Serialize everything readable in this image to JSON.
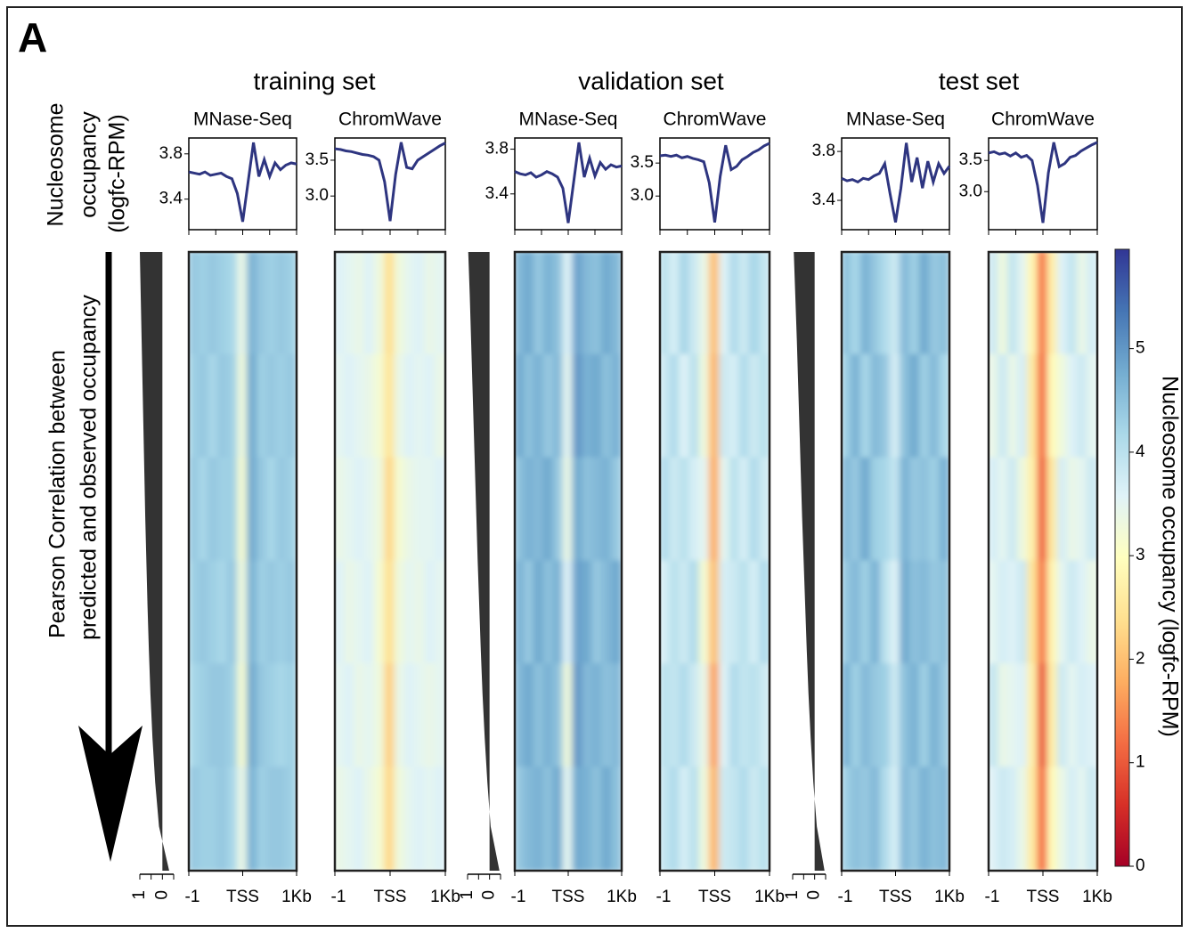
{
  "panel_label": "A",
  "group_titles": [
    "training set",
    "validation set",
    "test set"
  ],
  "profile_axis_label": [
    "Nucleosome",
    "occupancy",
    "(logfc-RPM)"
  ],
  "sort_label": [
    "Pearson Correlation between",
    "predicted and observed occupancy"
  ],
  "chart_data": [
    {
      "type": "line",
      "title": "MNase-Seq",
      "x": [
        -1000,
        -900,
        -800,
        -700,
        -600,
        -500,
        -400,
        -300,
        -200,
        -100,
        0,
        100,
        200,
        300,
        400,
        500,
        600,
        700,
        800,
        900,
        1000
      ],
      "xlim": [
        -1000,
        1000
      ],
      "xminor": [
        -1000,
        -500,
        0,
        500,
        1000
      ],
      "ylim": [
        3.13,
        3.94
      ],
      "yticks": [
        3.4,
        3.8
      ],
      "color": "#2e3580",
      "values": [
        3.64,
        3.63,
        3.62,
        3.64,
        3.61,
        3.62,
        3.63,
        3.6,
        3.58,
        3.45,
        3.2,
        3.55,
        3.9,
        3.6,
        3.75,
        3.6,
        3.72,
        3.66,
        3.7,
        3.72,
        3.71
      ]
    },
    {
      "type": "line",
      "title": "ChromWave",
      "x": [
        -1000,
        -900,
        -800,
        -700,
        -600,
        -500,
        -400,
        -300,
        -200,
        -100,
        0,
        100,
        200,
        300,
        400,
        500,
        600,
        700,
        800,
        900,
        1000
      ],
      "xlim": [
        -1000,
        1000
      ],
      "xminor": [
        -1000,
        -500,
        0,
        500,
        1000
      ],
      "ylim": [
        2.53,
        3.81
      ],
      "yticks": [
        {
          "value": 3,
          "label": "3.0"
        },
        3.5
      ],
      "color": "#2e3580",
      "values": [
        3.66,
        3.65,
        3.63,
        3.62,
        3.6,
        3.58,
        3.57,
        3.55,
        3.5,
        3.2,
        2.65,
        3.3,
        3.75,
        3.4,
        3.38,
        3.5,
        3.55,
        3.6,
        3.65,
        3.7,
        3.74
      ]
    },
    {
      "type": "heatmap",
      "x": [
        -909,
        -727,
        -545,
        -364,
        -182,
        0,
        182,
        364,
        545,
        727,
        909
      ],
      "xlim": [
        -1000,
        1000
      ],
      "xticks": [
        {
          "value": -1000,
          "label": "-1"
        },
        {
          "value": 0,
          "label": "TSS"
        },
        {
          "value": 1000,
          "label": "1Kb"
        }
      ],
      "values": [
        [
          4.4,
          4.3,
          4.4,
          4.3,
          4.2,
          3.4,
          4.7,
          4.4,
          4.3,
          4.4,
          4.3
        ],
        [
          4.3,
          4.4,
          4.2,
          4.4,
          4.3,
          3.3,
          4.8,
          4.3,
          4.4,
          4.3,
          4.4
        ],
        [
          4.4,
          4.2,
          4.4,
          4.3,
          4.3,
          3.2,
          4.8,
          4.4,
          4.2,
          4.4,
          4.3
        ],
        [
          4.3,
          4.4,
          4.3,
          4.2,
          4.4,
          3.3,
          4.7,
          4.3,
          4.4,
          4.3,
          4.4
        ],
        [
          4.2,
          4.3,
          4.4,
          4.4,
          4.3,
          3.2,
          4.8,
          4.4,
          4.3,
          4.2,
          4.3
        ],
        [
          4.4,
          4.3,
          4.3,
          4.4,
          4.2,
          3.4,
          4.7,
          4.3,
          4.4,
          4.4,
          4.3
        ]
      ]
    },
    {
      "type": "heatmap",
      "x": [
        -909,
        -727,
        -545,
        -364,
        -182,
        0,
        182,
        364,
        545,
        727,
        909
      ],
      "xlim": [
        -1000,
        1000
      ],
      "xticks": [
        {
          "value": -1000,
          "label": "-1"
        },
        {
          "value": 0,
          "label": "TSS"
        },
        {
          "value": 1000,
          "label": "1Kb"
        }
      ],
      "values": [
        [
          3.6,
          3.5,
          3.4,
          3.6,
          3.3,
          2.4,
          3.3,
          3.5,
          3.6,
          3.4,
          3.5
        ],
        [
          3.5,
          3.6,
          3.5,
          3.4,
          3.2,
          2.5,
          3.4,
          3.6,
          3.5,
          3.6,
          3.4
        ],
        [
          3.4,
          3.5,
          3.6,
          3.5,
          3.3,
          2.3,
          3.2,
          3.4,
          3.5,
          3.5,
          3.6
        ],
        [
          3.6,
          3.4,
          3.5,
          3.6,
          3.2,
          2.4,
          3.3,
          3.5,
          3.4,
          3.6,
          3.5
        ],
        [
          3.5,
          3.6,
          3.4,
          3.5,
          3.3,
          2.2,
          3.4,
          3.6,
          3.5,
          3.4,
          3.5
        ],
        [
          3.4,
          3.5,
          3.6,
          3.4,
          3.2,
          2.3,
          3.3,
          3.5,
          3.6,
          3.5,
          3.6
        ]
      ]
    },
    {
      "type": "area",
      "xlim": [
        1,
        -0.5
      ],
      "xticks": [
        1,
        0
      ],
      "xminor": [
        0.5,
        -0.5
      ],
      "color": "#333333",
      "values": [
        1,
        0.96,
        0.92,
        0.88,
        0.84,
        0.8,
        0.76,
        0.71,
        0.66,
        0.6,
        0.53,
        0.44,
        0.32,
        0.15,
        -0.3
      ]
    },
    {
      "type": "line",
      "title": "MNase-Seq",
      "x": [
        -1000,
        -900,
        -800,
        -700,
        -600,
        -500,
        -400,
        -300,
        -200,
        -100,
        0,
        100,
        200,
        300,
        400,
        500,
        600,
        700,
        800,
        900,
        1000
      ],
      "xlim": [
        -1000,
        1000
      ],
      "xminor": [
        -1000,
        -500,
        0,
        500,
        1000
      ],
      "ylim": [
        3.08,
        3.9
      ],
      "yticks": [
        3.4,
        3.8
      ],
      "color": "#2e3580",
      "values": [
        3.6,
        3.58,
        3.57,
        3.59,
        3.55,
        3.57,
        3.6,
        3.58,
        3.55,
        3.45,
        3.14,
        3.5,
        3.86,
        3.55,
        3.72,
        3.56,
        3.68,
        3.62,
        3.66,
        3.64,
        3.65
      ]
    },
    {
      "type": "line",
      "title": "ChromWave",
      "x": [
        -1000,
        -900,
        -800,
        -700,
        -600,
        -500,
        -400,
        -300,
        -200,
        -100,
        0,
        100,
        200,
        300,
        400,
        500,
        600,
        700,
        800,
        900,
        1000
      ],
      "xlim": [
        -1000,
        1000
      ],
      "xminor": [
        -1000,
        -500,
        0,
        500,
        1000
      ],
      "ylim": [
        2.49,
        3.88
      ],
      "yticks": [
        {
          "value": 3,
          "label": "3.0"
        },
        3.5
      ],
      "color": "#2e3580",
      "values": [
        3.61,
        3.62,
        3.6,
        3.62,
        3.58,
        3.6,
        3.57,
        3.55,
        3.52,
        3.2,
        2.6,
        3.3,
        3.77,
        3.4,
        3.45,
        3.55,
        3.6,
        3.66,
        3.7,
        3.76,
        3.8
      ]
    },
    {
      "type": "heatmap",
      "x": [
        -909,
        -727,
        -545,
        -364,
        -182,
        0,
        182,
        364,
        545,
        727,
        909
      ],
      "xlim": [
        -1000,
        1000
      ],
      "xticks": [
        {
          "value": -1000,
          "label": "-1"
        },
        {
          "value": 0,
          "label": "TSS"
        },
        {
          "value": 1000,
          "label": "1Kb"
        }
      ],
      "values": [
        [
          4.6,
          4.8,
          4.4,
          4.7,
          4.5,
          3.6,
          4.9,
          4.6,
          4.5,
          4.8,
          4.6
        ],
        [
          4.8,
          4.5,
          4.7,
          4.4,
          4.6,
          3.5,
          5.0,
          4.7,
          4.8,
          4.5,
          4.7
        ],
        [
          4.5,
          4.7,
          4.6,
          4.8,
          4.4,
          3.4,
          4.8,
          4.5,
          4.6,
          4.7,
          4.4
        ],
        [
          4.7,
          4.4,
          4.8,
          4.5,
          4.7,
          3.6,
          4.9,
          4.8,
          4.4,
          4.6,
          4.8
        ],
        [
          4.6,
          4.8,
          4.5,
          4.7,
          4.5,
          3.3,
          5.0,
          4.6,
          4.7,
          4.5,
          4.6
        ],
        [
          4.4,
          4.6,
          4.7,
          4.5,
          4.8,
          3.5,
          4.8,
          4.7,
          4.5,
          4.8,
          4.5
        ]
      ]
    },
    {
      "type": "heatmap",
      "x": [
        -909,
        -727,
        -545,
        -364,
        -182,
        0,
        182,
        364,
        545,
        727,
        909
      ],
      "xlim": [
        -1000,
        1000
      ],
      "xticks": [
        {
          "value": -1000,
          "label": "-1"
        },
        {
          "value": 0,
          "label": "TSS"
        },
        {
          "value": 1000,
          "label": "1Kb"
        }
      ],
      "values": [
        [
          4.0,
          3.7,
          4.2,
          3.8,
          3.4,
          2.0,
          3.6,
          4.1,
          3.8,
          4.2,
          3.9
        ],
        [
          3.8,
          4.1,
          3.6,
          4.0,
          3.3,
          1.9,
          3.8,
          3.7,
          4.1,
          3.8,
          4.0
        ],
        [
          4.1,
          3.8,
          4.0,
          3.7,
          3.5,
          1.8,
          3.5,
          4.0,
          3.7,
          4.1,
          3.8
        ],
        [
          3.7,
          4.0,
          3.8,
          4.1,
          3.2,
          2.0,
          3.7,
          3.8,
          4.0,
          3.7,
          4.1
        ],
        [
          4.0,
          3.9,
          4.1,
          3.8,
          3.4,
          1.7,
          3.6,
          4.1,
          3.9,
          4.0,
          3.8
        ],
        [
          3.9,
          4.1,
          3.7,
          4.0,
          3.3,
          1.9,
          3.8,
          3.9,
          4.1,
          3.8,
          4.0
        ]
      ]
    },
    {
      "type": "area",
      "xlim": [
        1,
        -0.5
      ],
      "xticks": [
        1,
        0
      ],
      "xminor": [
        0.5,
        -0.5
      ],
      "color": "#333333",
      "values": [
        0.97,
        0.9,
        0.84,
        0.78,
        0.72,
        0.66,
        0.6,
        0.54,
        0.47,
        0.4,
        0.32,
        0.22,
        0.1,
        -0.05,
        -0.45
      ]
    },
    {
      "type": "line",
      "title": "MNase-Seq",
      "x": [
        -1000,
        -900,
        -800,
        -700,
        -600,
        -500,
        -400,
        -300,
        -200,
        -100,
        0,
        100,
        200,
        300,
        400,
        500,
        600,
        700,
        800,
        900,
        1000
      ],
      "xlim": [
        -1000,
        1000
      ],
      "xminor": [
        -1000,
        -500,
        0,
        500,
        1000
      ],
      "ylim": [
        3.16,
        3.91
      ],
      "yticks": [
        3.4,
        3.8
      ],
      "color": "#2e3580",
      "values": [
        3.58,
        3.56,
        3.57,
        3.55,
        3.58,
        3.57,
        3.6,
        3.62,
        3.7,
        3.45,
        3.22,
        3.5,
        3.87,
        3.55,
        3.75,
        3.5,
        3.72,
        3.55,
        3.7,
        3.62,
        3.68
      ]
    },
    {
      "type": "line",
      "title": "ChromWave",
      "x": [
        -1000,
        -900,
        -800,
        -700,
        -600,
        -500,
        -400,
        -300,
        -200,
        -100,
        0,
        100,
        200,
        300,
        400,
        500,
        600,
        700,
        800,
        900,
        1000
      ],
      "xlim": [
        -1000,
        1000
      ],
      "xminor": [
        -1000,
        -500,
        0,
        500,
        1000
      ],
      "ylim": [
        2.39,
        3.86
      ],
      "yticks": [
        {
          "value": 3,
          "label": "3.0"
        },
        3.5
      ],
      "color": "#2e3580",
      "values": [
        3.62,
        3.64,
        3.6,
        3.62,
        3.57,
        3.62,
        3.55,
        3.58,
        3.5,
        3.1,
        2.5,
        3.3,
        3.79,
        3.4,
        3.45,
        3.55,
        3.58,
        3.65,
        3.7,
        3.75,
        3.79
      ]
    },
    {
      "type": "heatmap",
      "x": [
        -909,
        -727,
        -545,
        -364,
        -182,
        0,
        182,
        364,
        545,
        727,
        909
      ],
      "xlim": [
        -1000,
        1000
      ],
      "xticks": [
        {
          "value": -1000,
          "label": "-1"
        },
        {
          "value": 0,
          "label": "TSS"
        },
        {
          "value": 1000,
          "label": "1Kb"
        }
      ],
      "values": [
        [
          4.5,
          4.2,
          4.7,
          4.4,
          4.1,
          3.8,
          4.6,
          4.3,
          4.8,
          4.4,
          4.5
        ],
        [
          4.3,
          4.7,
          4.2,
          4.6,
          4.4,
          3.7,
          4.5,
          4.8,
          4.3,
          4.6,
          4.2
        ],
        [
          4.6,
          4.4,
          4.8,
          4.3,
          4.2,
          3.9,
          4.7,
          4.4,
          4.5,
          4.3,
          4.7
        ],
        [
          4.4,
          4.6,
          4.3,
          4.7,
          4.0,
          3.6,
          4.8,
          4.5,
          4.6,
          4.4,
          4.5
        ],
        [
          4.7,
          4.3,
          4.6,
          4.4,
          4.3,
          3.8,
          4.5,
          4.7,
          4.3,
          4.7,
          4.4
        ],
        [
          4.3,
          4.5,
          4.4,
          4.6,
          4.1,
          3.7,
          4.6,
          4.4,
          4.7,
          4.5,
          4.6
        ]
      ]
    },
    {
      "type": "heatmap",
      "x": [
        -909,
        -727,
        -545,
        -364,
        -182,
        0,
        182,
        364,
        545,
        727,
        909
      ],
      "xlim": [
        -1000,
        1000
      ],
      "xticks": [
        {
          "value": -1000,
          "label": "-1"
        },
        {
          "value": 0,
          "label": "TSS"
        },
        {
          "value": 1000,
          "label": "1Kb"
        }
      ],
      "values": [
        [
          3.8,
          3.3,
          3.9,
          3.5,
          2.8,
          1.3,
          2.7,
          3.6,
          3.9,
          3.4,
          3.7
        ],
        [
          3.4,
          3.8,
          3.4,
          3.7,
          2.6,
          1.2,
          2.9,
          3.3,
          3.6,
          3.8,
          3.5
        ],
        [
          3.7,
          3.5,
          3.8,
          3.3,
          2.7,
          1.1,
          2.6,
          3.7,
          3.4,
          3.5,
          3.8
        ],
        [
          3.5,
          3.7,
          3.6,
          3.8,
          2.5,
          1.3,
          2.8,
          3.5,
          3.8,
          3.6,
          3.4
        ],
        [
          3.9,
          3.4,
          3.5,
          3.6,
          2.7,
          1.0,
          2.7,
          3.8,
          3.5,
          3.7,
          3.6
        ],
        [
          3.6,
          3.8,
          3.7,
          3.4,
          2.6,
          1.2,
          2.9,
          3.4,
          3.7,
          3.5,
          3.8
        ]
      ]
    },
    {
      "type": "area",
      "xlim": [
        1,
        -0.5
      ],
      "xticks": [
        1,
        0
      ],
      "xminor": [
        0.5,
        -0.5
      ],
      "color": "#333333",
      "values": [
        0.95,
        0.88,
        0.81,
        0.75,
        0.69,
        0.63,
        0.57,
        0.5,
        0.43,
        0.36,
        0.28,
        0.18,
        0.06,
        -0.1,
        -0.45
      ]
    },
    {
      "type": "colorbar",
      "title": "Nucleosome occupancy (logfc-RPM)",
      "zlim": [
        0,
        5.96
      ],
      "zticks": [
        0,
        1,
        2,
        3,
        4,
        5
      ],
      "colormap": [
        "#a50026",
        "#d73027",
        "#f46d43",
        "#fdae61",
        "#fee090",
        "#ffffbf",
        "#e0f3f8",
        "#abd9e9",
        "#74add1",
        "#4575b4",
        "#313695"
      ]
    }
  ]
}
